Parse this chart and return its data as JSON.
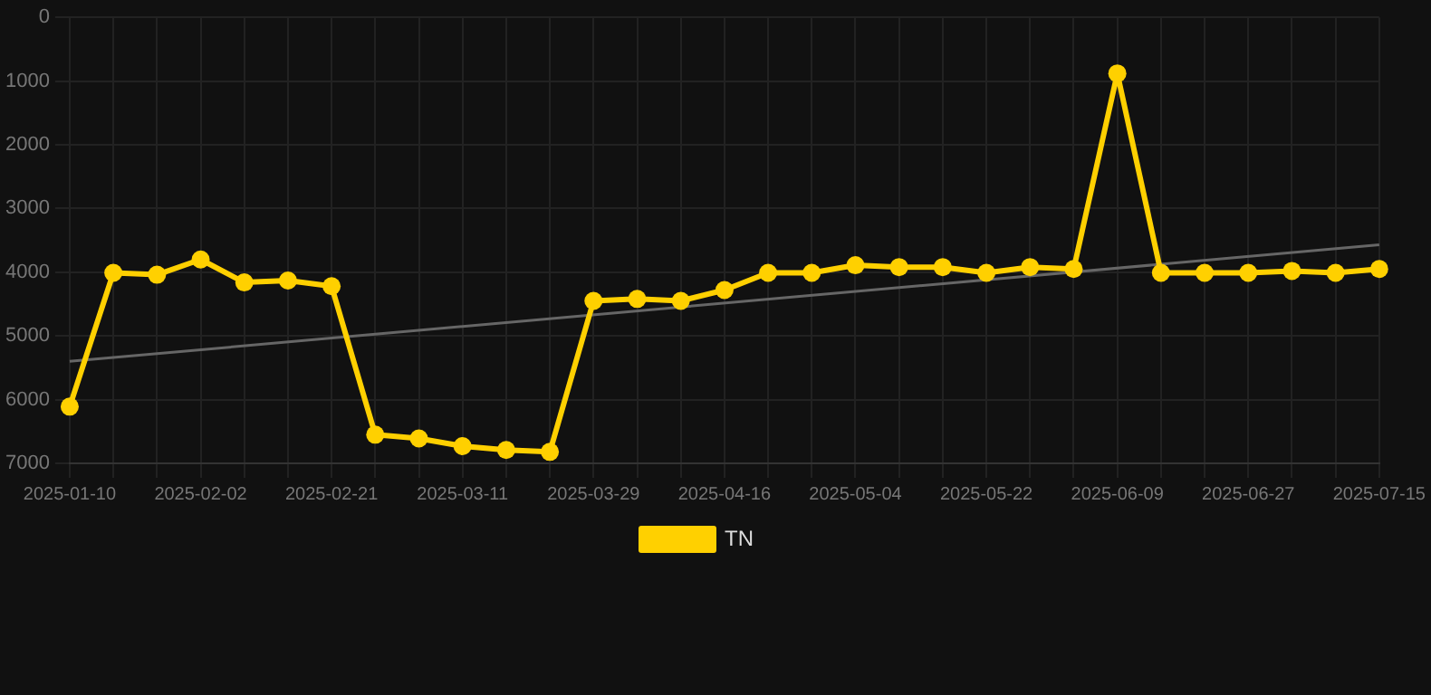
{
  "chart_data": {
    "type": "line",
    "categories": [
      "2025-01-10",
      null,
      null,
      "2025-02-02",
      null,
      null,
      "2025-02-21",
      null,
      null,
      "2025-03-11",
      null,
      null,
      "2025-03-29",
      null,
      null,
      "2025-04-16",
      null,
      null,
      "2025-05-04",
      null,
      null,
      "2025-05-22",
      null,
      null,
      "2025-06-09",
      null,
      null,
      "2025-06-27",
      null,
      null,
      "2025-07-15"
    ],
    "series": [
      {
        "name": "TN",
        "color": "#ffd000",
        "marker": "circle",
        "values": [
          6110,
          4010,
          4040,
          3800,
          4160,
          4130,
          4220,
          6550,
          6610,
          6730,
          6790,
          6820,
          4450,
          4420,
          4450,
          4280,
          4010,
          4010,
          3890,
          3920,
          3920,
          4010,
          3920,
          3950,
          880,
          4010,
          4010,
          4010,
          3980,
          4010,
          3950
        ]
      },
      {
        "type": "line",
        "color": "#666666",
        "marker": "none",
        "values": [
          5400,
          null,
          null,
          null,
          null,
          null,
          null,
          null,
          null,
          null,
          null,
          null,
          null,
          null,
          null,
          null,
          null,
          null,
          null,
          null,
          null,
          null,
          null,
          null,
          null,
          null,
          null,
          null,
          null,
          null,
          3570
        ]
      }
    ],
    "ylim": [
      7000,
      0
    ],
    "yticks": [
      0,
      1000,
      2000,
      3000,
      4000,
      5000,
      6000,
      7000
    ],
    "grid": true,
    "legend": "bottom"
  }
}
